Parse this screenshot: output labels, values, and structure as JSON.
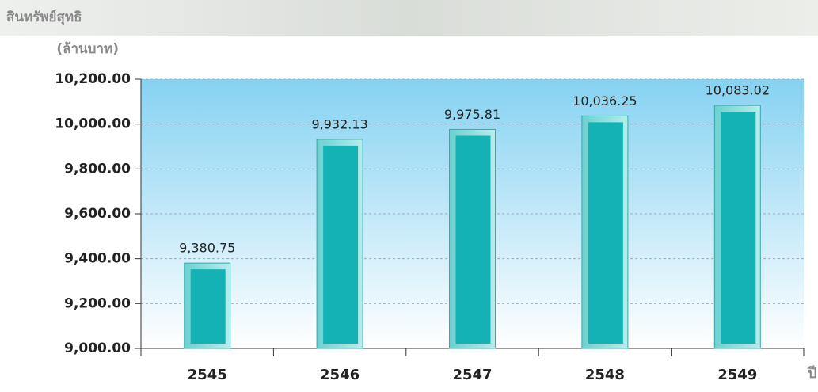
{
  "chart_data": {
    "type": "bar",
    "y_title": [
      "สินทรัพย์สุทธิ",
      "(ล้านบาท)"
    ],
    "x_title": "ปี",
    "categories": [
      "2545",
      "2546",
      "2547",
      "2548",
      "2549"
    ],
    "values": [
      9380.75,
      9932.13,
      9975.81,
      10036.25,
      10083.02
    ],
    "value_labels": [
      "9,380.75",
      "9,932.13",
      "9,975.81",
      "10,036.25",
      "10,083.02"
    ],
    "color": "#14b2b4",
    "ylim": [
      9000,
      10200
    ],
    "yticks": [
      {
        "value": 9000,
        "label": "9,000.00"
      },
      {
        "value": 9200,
        "label": "9,200.00"
      },
      {
        "value": 9400,
        "label": "9,400.00"
      },
      {
        "value": 9600,
        "label": "9,600.00"
      },
      {
        "value": 9800,
        "label": "9,800.00"
      },
      {
        "value": 10000,
        "label": "10,000.00"
      },
      {
        "value": 10200,
        "label": "10,200.00"
      }
    ],
    "grid": true
  }
}
